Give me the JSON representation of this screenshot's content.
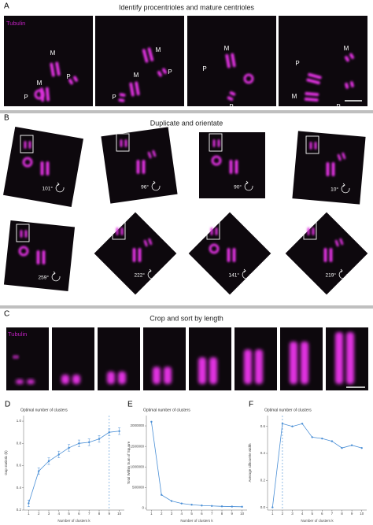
{
  "panels": [
    {
      "letter": "A",
      "title": "Identify procentrioles and mature centrioles",
      "stain": "Tubulin",
      "image_labels": [
        [
          "M",
          "P",
          "M",
          "P"
        ],
        [
          "M",
          "P",
          "M",
          "P"
        ],
        [
          "M",
          "P",
          "P"
        ],
        [
          "M",
          "P",
          "P",
          "M"
        ]
      ]
    },
    {
      "letter": "B",
      "title": "Duplicate and orientate",
      "angles": [
        "101°",
        "96°",
        "90°",
        "10°",
        "259°",
        "222°",
        "141°",
        "219°"
      ]
    },
    {
      "letter": "C",
      "title": "Crop and sort by length",
      "stain": "Tubulin"
    }
  ],
  "chart_data": [
    {
      "type": "line",
      "panel": "D",
      "title": "Optimal number of clusters",
      "xlabel": "Number of clusters k",
      "ylabel": "Gap statistic (k)",
      "x": [
        1,
        2,
        3,
        4,
        5,
        6,
        7,
        8,
        9,
        10
      ],
      "values": [
        0.26,
        0.55,
        0.64,
        0.7,
        0.76,
        0.8,
        0.81,
        0.84,
        0.9,
        0.91
      ],
      "errors": [
        0.03,
        0.03,
        0.03,
        0.03,
        0.03,
        0.03,
        0.03,
        0.03,
        0.03,
        0.03
      ],
      "color": "#4a8fd6",
      "xlim": [
        0.5,
        10.5
      ],
      "xticks": [
        1,
        2,
        3,
        4,
        5,
        6,
        7,
        8,
        9,
        10
      ],
      "ylim": [
        0.2,
        1.05
      ],
      "yticks": [
        0.2,
        0.4,
        0.6,
        0.8,
        {
          "value": 1,
          "label": "1.0"
        }
      ],
      "vline": 9
    },
    {
      "type": "line",
      "panel": "E",
      "title": "Optimal number of clusters",
      "xlabel": "Number of clusters k",
      "ylabel": "Total Within Sum of Square",
      "x": [
        1,
        2,
        3,
        4,
        5,
        6,
        7,
        8,
        9,
        10
      ],
      "values": [
        2100000,
        320000,
        170000,
        110000,
        80000,
        60000,
        50000,
        40000,
        35000,
        30000
      ],
      "color": "#4a8fd6",
      "xlim": [
        0.5,
        10.5
      ],
      "xticks": [
        1,
        2,
        3,
        4,
        5,
        6,
        7,
        8,
        9,
        10
      ],
      "ylim": [
        -50000,
        2250000
      ],
      "yticks": [
        0,
        500000,
        1000000,
        1500000,
        2000000
      ]
    },
    {
      "type": "line",
      "panel": "F",
      "title": "Optimal number of clusters",
      "xlabel": "Number of clusters k",
      "ylabel": "Average silhouette width",
      "x": [
        1,
        2,
        3,
        4,
        5,
        6,
        7,
        8,
        9,
        10
      ],
      "values": [
        0,
        0.62,
        0.6,
        0.62,
        0.52,
        0.51,
        0.49,
        0.44,
        0.46,
        0.44
      ],
      "color": "#4a8fd6",
      "xlim": [
        0.5,
        10.5
      ],
      "xticks": [
        1,
        2,
        3,
        4,
        5,
        6,
        7,
        8,
        9,
        10
      ],
      "ylim": [
        -0.02,
        0.68
      ],
      "yticks": [
        {
          "value": 0,
          "label": "0.0"
        },
        0.2,
        0.4,
        0.6
      ],
      "vline": 2
    }
  ]
}
